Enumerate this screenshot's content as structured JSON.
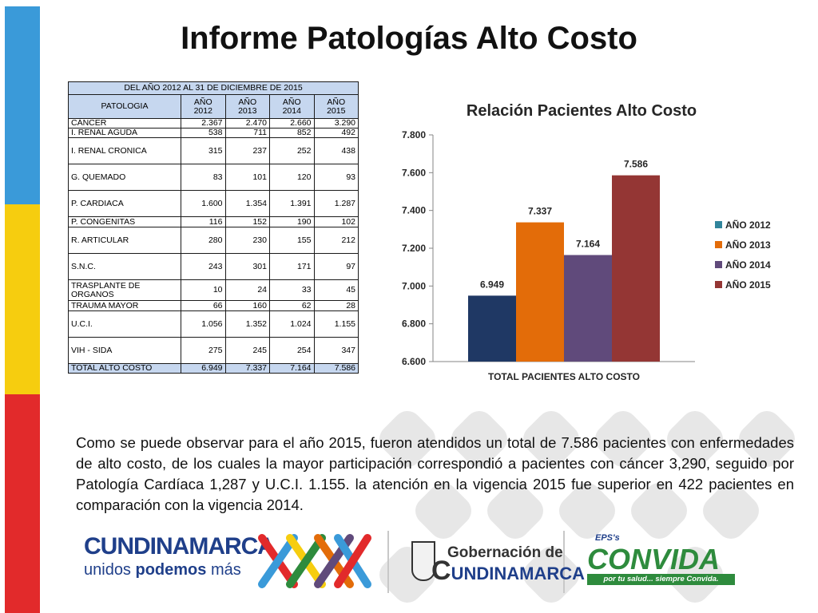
{
  "title": "Informe Patologías Alto Costo",
  "table": {
    "caption": "DEL AÑO 2012 AL 31 DE DICIEMBRE DE 2015",
    "headers": [
      "PATOLOGIA",
      "AÑO 2012",
      "AÑO 2013",
      "AÑO 2014",
      "AÑO 2015"
    ],
    "rows": [
      {
        "name": "CÁNCER",
        "v": [
          "2.367",
          "2.470",
          "2.660",
          "3.290"
        ]
      },
      {
        "name": "I. RENAL AGUDA",
        "v": [
          "538",
          "711",
          "852",
          "492"
        ]
      },
      {
        "name": "I. RENAL CRONICA",
        "v": [
          "315",
          "237",
          "252",
          "438"
        ]
      },
      {
        "name": "G. QUEMADO",
        "v": [
          "83",
          "101",
          "120",
          "93"
        ]
      },
      {
        "name": "P. CARDIACA",
        "v": [
          "1.600",
          "1.354",
          "1.391",
          "1.287"
        ]
      },
      {
        "name": "P. CONGENITAS",
        "v": [
          "116",
          "152",
          "190",
          "102"
        ]
      },
      {
        "name": "R. ARTICULAR",
        "v": [
          "280",
          "230",
          "155",
          "212"
        ]
      },
      {
        "name": "S.N.C.",
        "v": [
          "243",
          "301",
          "171",
          "97"
        ]
      },
      {
        "name": "TRASPLANTE DE ORGANOS",
        "v": [
          "10",
          "24",
          "33",
          "45"
        ]
      },
      {
        "name": "TRAUMA MAYOR",
        "v": [
          "66",
          "160",
          "62",
          "28"
        ]
      },
      {
        "name": "U.C.I.",
        "v": [
          "1.056",
          "1.352",
          "1.024",
          "1.155"
        ]
      },
      {
        "name": "VIH - SIDA",
        "v": [
          "275",
          "245",
          "254",
          "347"
        ]
      },
      {
        "name": "TOTAL ALTO COSTO",
        "v": [
          "6.949",
          "7.337",
          "7.164",
          "7.586"
        ]
      }
    ]
  },
  "chart_data": {
    "type": "bar",
    "title": "Relación Pacientes Alto Costo",
    "categories": [
      "TOTAL PACIENTES ALTO COSTO"
    ],
    "series": [
      {
        "name": "AÑO 2012",
        "values": [
          6949
        ],
        "color": "#1f3864",
        "label": "6.949"
      },
      {
        "name": "AÑO 2013",
        "values": [
          7337
        ],
        "color": "#e36c09",
        "label": "7.337"
      },
      {
        "name": "AÑO 2014",
        "values": [
          7164
        ],
        "color": "#604a7b",
        "label": "7.164"
      },
      {
        "name": "AÑO 2015",
        "values": [
          7586
        ],
        "color": "#943634",
        "label": "7.586"
      }
    ],
    "legend_colors": [
      "#31859c",
      "#e36c09",
      "#604a7b",
      "#943634"
    ],
    "ylim": [
      6600,
      7800
    ],
    "yticks": [
      6600,
      6800,
      7000,
      7200,
      7400,
      7600,
      7800
    ],
    "ytick_labels": [
      "6.600",
      "6.800",
      "7.000",
      "7.200",
      "7.400",
      "7.600",
      "7.800"
    ],
    "legend_position": "right",
    "grid": false
  },
  "paragraph": "Como se puede observar para el año 2015, fueron atendidos un total de 7.586 pacientes con enfermedades de alto costo, de los cuales la mayor participación correspondió a pacientes con cáncer 3,290, seguido por Patología Cardíaca 1,287 y U.C.I. 1.155. la atención en la vigencia 2015 fue superior en 422 pacientes en comparación con la vigencia 2014.",
  "footer": {
    "cund_word": "CUNDINAMARCA",
    "cund_tag_a": "unidos ",
    "cund_tag_b": "podemos",
    "cund_tag_c": " más",
    "gob_word1": "Gobernación de",
    "gob_word2": "UNDINAMARCA",
    "gob_c": "C",
    "eps": "EPS's",
    "convida": "CONVIDA",
    "convida_tag": "por tu salud... siempre Convida."
  },
  "colors": {
    "stripe_blue": "#3a9ad9",
    "stripe_yellow": "#f6cd0f",
    "stripe_red": "#e22a2b",
    "table_header": "#c6d7ef"
  }
}
